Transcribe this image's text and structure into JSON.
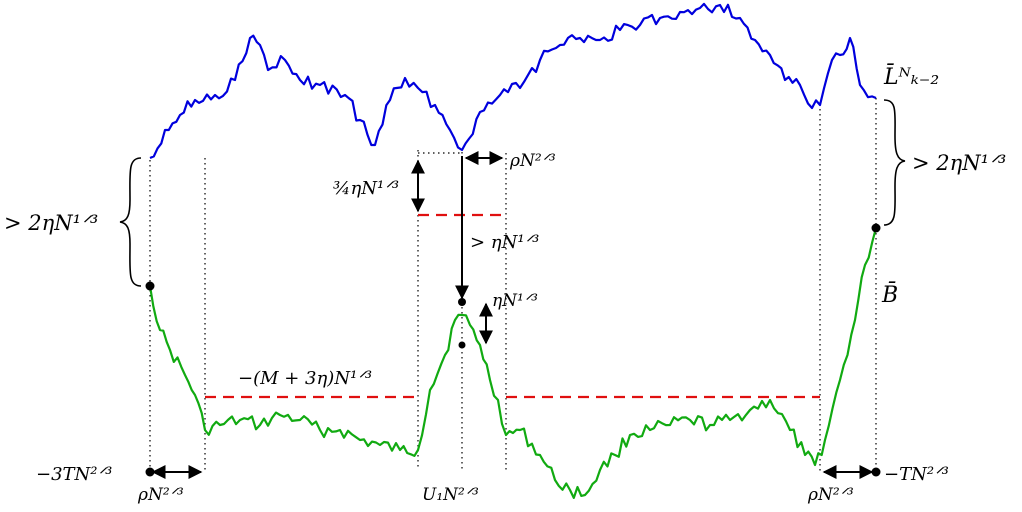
{
  "labels": {
    "curve_top": "L̄ᴺₖ₋₂",
    "curve_bottom": "B̄",
    "gap_left": "> 2ηN¹ᐟ³",
    "gap_right": "> 2ηN¹ᐟ³",
    "three_quarter": "¾ηN¹ᐟ³",
    "rho_top": "ρN²ᐟ³",
    "gt_eta": "> ηN¹ᐟ³",
    "eta": "ηN¹ᐟ³",
    "level": "−(M + 3η)N¹ᐟ³",
    "left_endpoint": "−3TN²ᐟ³",
    "right_endpoint": "−TN²ᐟ³",
    "rho_left": "ρN²ᐟ³",
    "rho_right": "ρN²ᐟ³",
    "u1": "U₁N²ᐟ³"
  },
  "colors": {
    "top_curve": "#0000dd",
    "bottom_curve": "#11aa11",
    "dashed_level": "#e01010",
    "ink": "#000000"
  }
}
